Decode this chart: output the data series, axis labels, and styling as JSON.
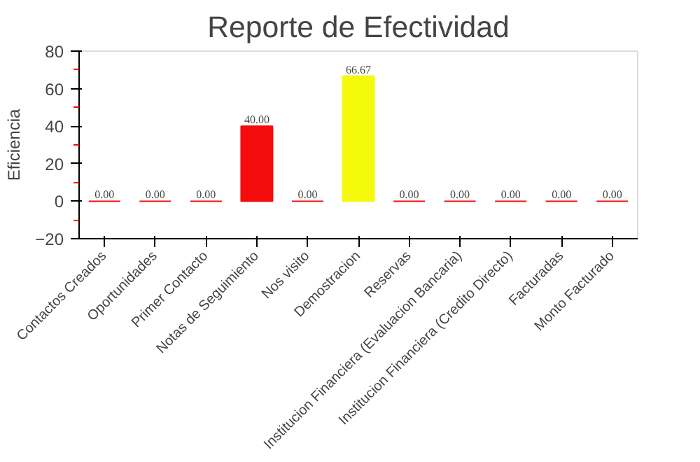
{
  "chart_data": {
    "type": "bar",
    "title": "Reporte de Efectividad",
    "ylabel": "Eficiencia",
    "categories": [
      "Contactos Creados",
      "Oportunidades",
      "Primer Contacto",
      "Notas de Seguimiento",
      "Nos visito",
      "Demostracion",
      "Reservas",
      "Institucion Financiera (Evaluacion Bancaria)",
      "Institucion Financiera (Credito Directo)",
      "Facturadas",
      "Monto Facturado"
    ],
    "values": [
      0,
      0,
      0,
      40,
      0,
      66.67,
      0,
      0,
      0,
      0,
      0
    ],
    "colors": [
      "#f40c0c",
      "#f40c0c",
      "#f40c0c",
      "#f40c0c",
      "#f40c0c",
      "#f5f90c",
      "#f40c0c",
      "#f40c0c",
      "#f40c0c",
      "#f40c0c",
      "#f40c0c"
    ],
    "value_labels": [
      "0.00",
      "0.00",
      "0.00",
      "40.00",
      "0.00",
      "66.67",
      "0.00",
      "0.00",
      "0.00",
      "0.00",
      "0.00"
    ],
    "ylim": [
      -20,
      80
    ],
    "yticks": [
      -20,
      0,
      20,
      40,
      60,
      80
    ],
    "grid": false
  }
}
